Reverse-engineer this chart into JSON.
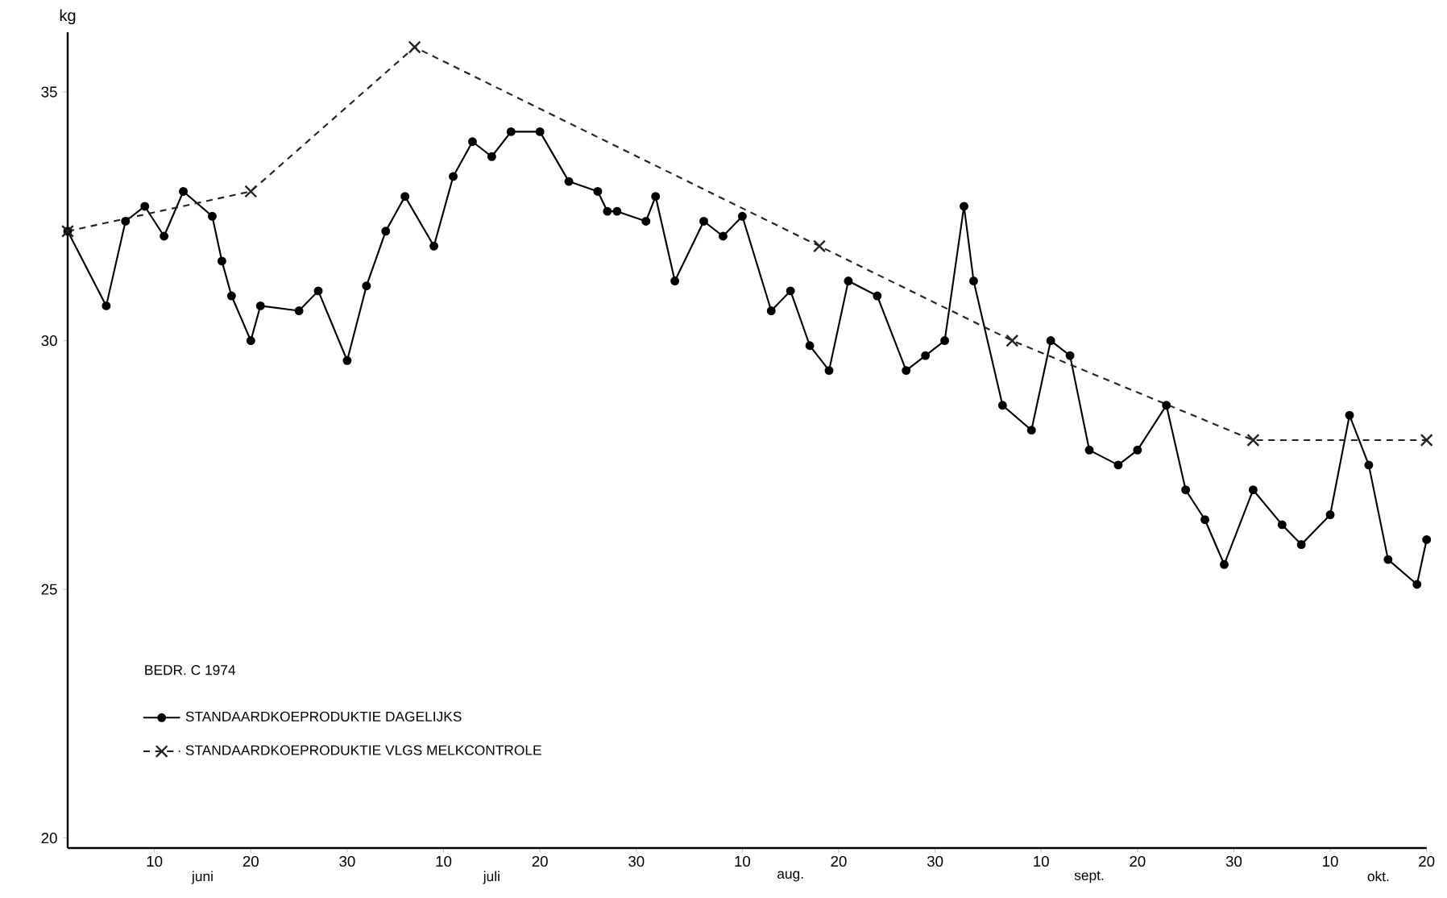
{
  "chart_data": {
    "type": "line",
    "ylabel": "kg",
    "legend_title": "BEDR. C 1974",
    "legend": "bottom left",
    "xlim": [
      "1974-06-01",
      "1974-10-20"
    ],
    "ylim": [
      19.8,
      36.2
    ],
    "yticks": [
      20,
      25,
      30,
      35
    ],
    "xticks": [
      {
        "value": "1974-06-10",
        "label": "10"
      },
      {
        "value": "1974-06-20",
        "label": "20"
      },
      {
        "value": "1974-06-30",
        "label": "30"
      },
      {
        "value": "1974-07-10",
        "label": "10"
      },
      {
        "value": "1974-07-20",
        "label": "20"
      },
      {
        "value": "1974-07-30",
        "label": "30"
      },
      {
        "value": "1974-08-10",
        "label": "10"
      },
      {
        "value": "1974-08-20",
        "label": "20"
      },
      {
        "value": "1974-08-30",
        "label": "30"
      },
      {
        "value": "1974-09-10",
        "label": "10"
      },
      {
        "value": "1974-09-20",
        "label": "20"
      },
      {
        "value": "1974-09-30",
        "label": "30"
      },
      {
        "value": "1974-10-10",
        "label": "10"
      },
      {
        "value": "1974-10-20",
        "label": "20"
      }
    ],
    "x2lim": [
      "1974-06-01",
      "1974-10-20"
    ],
    "x2ticks": [
      {
        "value": "1974-06-15",
        "label": "juni"
      },
      {
        "value": "1974-07-15",
        "label": "juli"
      },
      {
        "value": "1974-08-15",
        "label": "aug."
      },
      {
        "value": "1974-09-15",
        "label": "sept."
      },
      {
        "value": "1974-10-15",
        "label": "okt."
      }
    ],
    "series": [
      {
        "name": "STANDAARDKOEPRODUKTIE DAGELIJKS",
        "color": "#000000",
        "type": "line",
        "marker": "circle",
        "line_style": "solid",
        "x": [
          "1974-06-01",
          "1974-06-05",
          "1974-06-07",
          "1974-06-09",
          "1974-06-11",
          "1974-06-13",
          "1974-06-16",
          "1974-06-17",
          "1974-06-18",
          "1974-06-20",
          "1974-06-21",
          "1974-06-25",
          "1974-06-27",
          "1974-06-30",
          "1974-07-02",
          "1974-07-04",
          "1974-07-06",
          "1974-07-09",
          "1974-07-11",
          "1974-07-13",
          "1974-07-15",
          "1974-07-17",
          "1974-07-20",
          "1974-07-23",
          "1974-07-26",
          "1974-07-27",
          "1974-07-28",
          "1974-07-31",
          "1974-08-01",
          "1974-08-03",
          "1974-08-06",
          "1974-08-08",
          "1974-08-10",
          "1974-08-13",
          "1974-08-15",
          "1974-08-17",
          "1974-08-19",
          "1974-08-21",
          "1974-08-24",
          "1974-08-27",
          "1974-08-29",
          "1974-08-31",
          "1974-09-02",
          "1974-09-03",
          "1974-09-06",
          "1974-09-09",
          "1974-09-11",
          "1974-09-13",
          "1974-09-15",
          "1974-09-18",
          "1974-09-20",
          "1974-09-23",
          "1974-09-25",
          "1974-09-27",
          "1974-09-29",
          "1974-10-02",
          "1974-10-05",
          "1974-10-07",
          "1974-10-10",
          "1974-10-12",
          "1974-10-14",
          "1974-10-16",
          "1974-10-19",
          "1974-10-20"
        ],
        "values": [
          32.2,
          30.7,
          32.4,
          32.7,
          32.1,
          33.0,
          32.5,
          31.6,
          30.9,
          30.0,
          30.7,
          30.6,
          31.0,
          29.6,
          31.1,
          32.2,
          32.9,
          31.9,
          33.3,
          34.0,
          33.7,
          34.2,
          34.2,
          33.2,
          33.0,
          32.6,
          32.6,
          32.4,
          32.9,
          31.2,
          32.4,
          32.1,
          32.5,
          30.6,
          31.0,
          29.9,
          29.4,
          31.2,
          30.9,
          29.4,
          29.7,
          30.0,
          32.7,
          31.2,
          28.7,
          28.2,
          30.0,
          29.7,
          27.8,
          27.5,
          27.8,
          28.7,
          27.0,
          26.4,
          25.5,
          27.0,
          26.3,
          25.9,
          26.5,
          28.5,
          27.5,
          25.6,
          25.1,
          26.0
        ]
      },
      {
        "name": "STANDAARDKOEPRODUKTIE VLGS MELKCONTROLE",
        "color": "#222222",
        "type": "line",
        "marker": "cross",
        "line_style": "dashed",
        "x": [
          "1974-06-01",
          "1974-06-20",
          "1974-07-07",
          "1974-08-18",
          "1974-09-07",
          "1974-10-02",
          "1974-10-20"
        ],
        "values": [
          32.2,
          33.0,
          35.9,
          31.9,
          30.0,
          28.0,
          28.0
        ]
      }
    ]
  }
}
